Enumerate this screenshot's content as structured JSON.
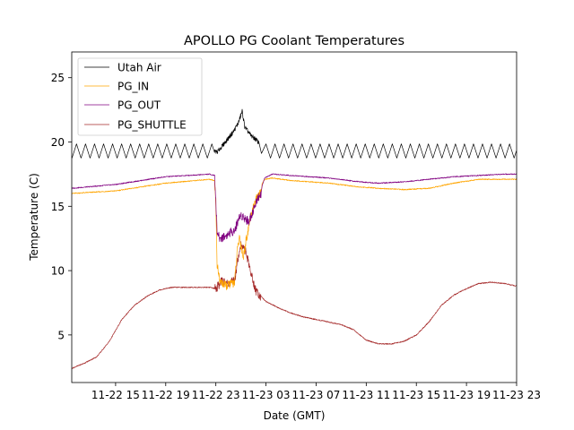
{
  "chart_data": {
    "type": "line",
    "title": "APOLLO PG Coolant Temperatures",
    "xlabel": "Date (GMT)",
    "ylabel": "Temperature (C)",
    "x_range_hours": [
      11.5,
      47.0
    ],
    "ylim": [
      1.3,
      27.0
    ],
    "grid": false,
    "legend_position": "top-left",
    "x_ticks": [
      {
        "hour": 15,
        "label": "11-22 15"
      },
      {
        "hour": 19,
        "label": "11-22 19"
      },
      {
        "hour": 23,
        "label": "11-22 23"
      },
      {
        "hour": 27,
        "label": "11-23 03"
      },
      {
        "hour": 31,
        "label": "11-23 07"
      },
      {
        "hour": 35,
        "label": "11-23 11"
      },
      {
        "hour": 39,
        "label": "11-23 15"
      },
      {
        "hour": 43,
        "label": "11-23 19"
      },
      {
        "hour": 47,
        "label": "11-23 23"
      }
    ],
    "y_ticks": [
      5,
      10,
      15,
      20,
      25
    ],
    "series": [
      {
        "name": "Utah Air",
        "color": "#000000",
        "oscillation": {
          "amplitude": 0.55,
          "period_hours": 0.72,
          "applies_to_hours": [
            [
              11.5,
              22.9
            ],
            [
              26.4,
              47.0
            ]
          ]
        },
        "x": [
          11.5,
          22.9,
          23.1,
          23.6,
          24.0,
          24.4,
          24.8,
          25.1,
          25.3,
          25.5,
          25.8,
          26.2,
          26.6,
          27.0,
          47.0
        ],
        "y": [
          19.3,
          19.3,
          19.2,
          19.8,
          20.3,
          20.8,
          21.5,
          22.4,
          21.2,
          20.9,
          20.5,
          20.2,
          19.7,
          19.3,
          19.3
        ]
      },
      {
        "name": "PG_IN",
        "color": "#ffa500",
        "x": [
          11.5,
          15.0,
          19.0,
          22.5,
          22.9,
          23.0,
          23.1,
          23.3,
          23.8,
          24.2,
          24.5,
          24.7,
          24.9,
          25.0,
          25.2,
          25.4,
          25.7,
          26.0,
          26.3,
          26.6,
          26.7,
          26.9,
          27.5,
          29.0,
          32.0,
          34.5,
          36.0,
          38.0,
          40.0,
          42.0,
          44.0,
          46.0,
          47.0
        ],
        "y": [
          16.0,
          16.2,
          16.8,
          17.1,
          17.0,
          15.0,
          10.5,
          9.2,
          8.8,
          9.0,
          9.1,
          11.5,
          12.7,
          12.0,
          11.0,
          12.3,
          13.8,
          15.0,
          15.7,
          16.0,
          16.8,
          17.1,
          17.2,
          17.0,
          16.8,
          16.5,
          16.4,
          16.3,
          16.4,
          16.8,
          17.1,
          17.1,
          17.1
        ]
      },
      {
        "name": "PG_OUT",
        "color": "#800080",
        "x": [
          11.5,
          15.0,
          19.0,
          22.5,
          22.9,
          23.0,
          23.1,
          23.3,
          23.8,
          24.2,
          24.5,
          24.8,
          25.0,
          25.3,
          25.6,
          26.0,
          26.3,
          26.6,
          26.7,
          26.9,
          27.5,
          29.0,
          32.0,
          34.5,
          36.0,
          38.0,
          40.0,
          42.0,
          44.0,
          46.0,
          47.0
        ],
        "y": [
          16.4,
          16.7,
          17.3,
          17.5,
          17.4,
          15.5,
          13.0,
          12.5,
          12.7,
          13.0,
          13.1,
          14.0,
          14.3,
          14.1,
          13.8,
          14.7,
          15.6,
          16.0,
          16.6,
          17.2,
          17.5,
          17.4,
          17.2,
          16.9,
          16.8,
          16.9,
          17.1,
          17.3,
          17.4,
          17.5,
          17.5
        ]
      },
      {
        "name": "PG_SHUTTLE",
        "color": "#a52a2a",
        "x": [
          11.5,
          12.5,
          13.5,
          14.5,
          15.5,
          16.5,
          17.5,
          18.5,
          19.5,
          20.5,
          21.5,
          22.5,
          23.0,
          23.5,
          24.0,
          24.5,
          24.8,
          25.0,
          25.4,
          25.8,
          26.2,
          27.0,
          28.0,
          29.0,
          30.0,
          31.0,
          32.0,
          33.0,
          34.0,
          35.0,
          36.0,
          37.0,
          38.0,
          39.0,
          40.0,
          41.0,
          42.0,
          43.0,
          44.0,
          45.0,
          46.0,
          47.0
        ],
        "y": [
          2.4,
          2.8,
          3.3,
          4.5,
          6.2,
          7.3,
          8.0,
          8.5,
          8.7,
          8.7,
          8.7,
          8.7,
          8.6,
          9.2,
          9.0,
          9.2,
          11.2,
          12.0,
          11.5,
          9.8,
          8.4,
          7.6,
          7.1,
          6.7,
          6.4,
          6.2,
          6.0,
          5.8,
          5.4,
          4.6,
          4.3,
          4.3,
          4.5,
          5.0,
          6.0,
          7.3,
          8.1,
          8.6,
          9.0,
          9.1,
          9.0,
          8.8
        ]
      }
    ]
  }
}
